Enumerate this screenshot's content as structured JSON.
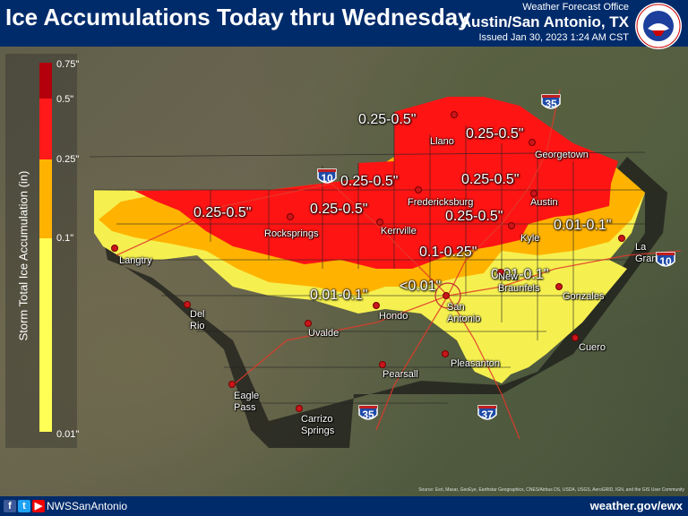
{
  "header": {
    "title": "Ice Accumulations Today thru Wednesday",
    "wfo_label": "Weather Forecast Office",
    "office": "Austin/San Antonio, TX",
    "issued": "Issued Jan 30, 2023 1:24 AM CST",
    "logo_text": "NATIONAL WEATHER SERVICE"
  },
  "legend": {
    "title": "Storm Total Ice Accumulation (in)",
    "ticks": [
      "0.75\"",
      "0.5\"",
      "0.25\"",
      "0.1\"",
      "0.01\""
    ],
    "colors": {
      "dark_red": "#b3000c",
      "red": "#ff1a1a",
      "orange": "#ffb300",
      "yellow": "#ffff55"
    }
  },
  "zone_labels": {
    "llano_zone": "0.25-0.5\"",
    "georgetown_zone": "0.25-0.5\"",
    "north_center_zone": "0.25-0.5\"",
    "east_center_zone": "0.25-0.5\"",
    "west_zone": "0.25-0.5\"",
    "kerrville_zone": "0.25-0.5\"",
    "austin_zone": "0.25-0.5\"",
    "kyle_zone": "0.1-0.25\"",
    "la_grange_zone": "0.01-0.1\"",
    "braunfels_zone": "0.01-0.1\"",
    "hondo_zone": "0.01-0.1\"",
    "san_antonio_zone": "<0.01\""
  },
  "cities": {
    "llano": "Llano",
    "georgetown": "Georgetown",
    "fredericksburg": "Fredericksburg",
    "austin": "Austin",
    "rocksprings": "Rocksprings",
    "kerrville": "Kerrville",
    "kyle": "Kyle",
    "la_grange": "La Grange",
    "langtry": "Langtry",
    "del_rio": "Del Rio",
    "hondo": "Hondo",
    "uvalde": "Uvalde",
    "san_antonio": "San Antonio",
    "new_braunfels": "New Braunfels",
    "gonzales": "Gonzales",
    "cuero": "Cuero",
    "pleasanton": "Pleasanton",
    "pearsall": "Pearsall",
    "eagle_pass": "Eagle Pass",
    "carrizo_springs": "Carrizo Springs"
  },
  "highways": {
    "i35_north": "35",
    "i10_west": "10",
    "i10_east": "10",
    "i35_south": "35",
    "i37": "37"
  },
  "footer": {
    "handle": "NWSSanAntonio",
    "website": "weather.gov/ewx",
    "credits": "Source: Esri, Maxar, GeoEye, Earthstar Geographics, CNES/Airbus DS, USDA, USGS, AeroGRID, IGN, and the GIS User Community",
    "social_icons": [
      "facebook-icon",
      "twitter-icon",
      "youtube-icon"
    ]
  }
}
